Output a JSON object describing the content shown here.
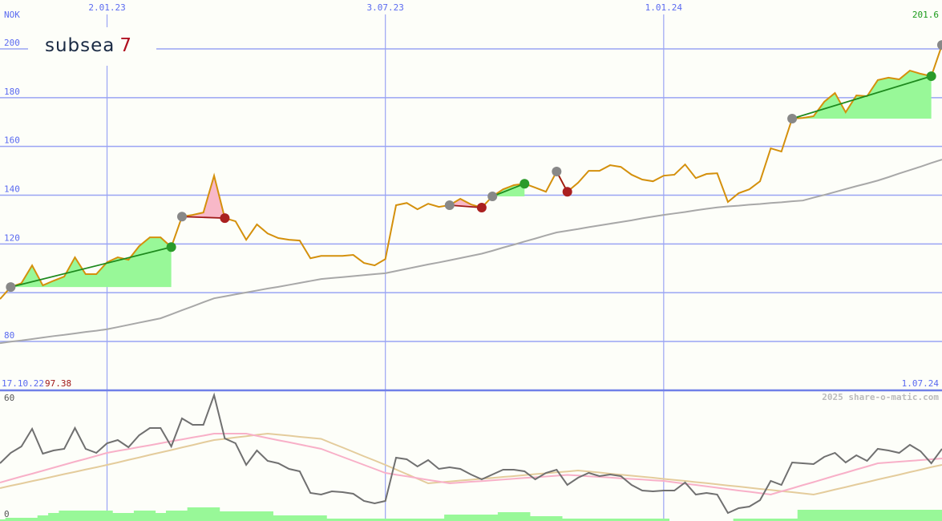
{
  "header": {
    "currency": "NOK",
    "last_value": "201.6",
    "start_date": "17.10.22",
    "start_value": "97.38",
    "end_date": "1.07.24",
    "copyright": "2025 share-o-matic.com"
  },
  "logo": {
    "text": "subsea",
    "number": "7",
    "text_color": "#1a2a44",
    "number_color": "#b01020"
  },
  "chart_data": [
    {
      "type": "line",
      "title": "",
      "xlabel": "",
      "ylabel": "NOK",
      "ylim": [
        80,
        200
      ],
      "yticks": [
        80,
        100,
        120,
        140,
        160,
        180,
        200
      ],
      "ytick_labels": [
        "80",
        "",
        "120",
        "140",
        "160",
        "180",
        "200"
      ],
      "xtick_labels": [
        "2.01.23",
        "3.07.23",
        "1.01.24"
      ],
      "grid": true,
      "price": [
        97.4,
        102.3,
        103.9,
        111.2,
        103,
        104.9,
        106.6,
        114.5,
        107.6,
        107.6,
        112.5,
        114.5,
        113.5,
        119.1,
        122.7,
        122.7,
        118.7,
        131.2,
        131.9,
        132.9,
        148,
        130.6,
        129.3,
        121.7,
        128,
        124.3,
        122.4,
        121.7,
        121.4,
        114.1,
        115.1,
        115.1,
        115.1,
        115.5,
        112.2,
        111.2,
        113.8,
        135.9,
        136.8,
        134.2,
        136.5,
        135.2,
        135.9,
        138.5,
        136.2,
        134.9,
        139.5,
        142.4,
        144.1,
        144.7,
        143.1,
        141.4,
        149.7,
        141.4,
        145.1,
        150,
        150,
        152.3,
        151.6,
        148.4,
        146.4,
        145.7,
        148,
        148.4,
        152.6,
        147,
        148.7,
        149,
        137.2,
        140.8,
        142.4,
        145.7,
        159.2,
        157.9,
        171.4,
        171.7,
        172.4,
        178.3,
        181.9,
        174,
        180.9,
        180.6,
        187.2,
        188.2,
        187.5,
        191.1,
        189.8,
        188.8,
        201.6
      ],
      "moving_average": [
        79.3,
        79.9,
        80.4,
        81.0,
        81.6,
        82.2,
        82.7,
        83.3,
        83.9,
        84.4,
        85.0,
        85.9,
        86.8,
        87.7,
        88.6,
        89.5,
        91.1,
        92.8,
        94.4,
        96.1,
        97.7,
        98.5,
        99.3,
        100.1,
        100.9,
        101.7,
        102.4,
        103.2,
        104.0,
        104.8,
        105.6,
        106.0,
        106.4,
        106.8,
        107.2,
        107.6,
        108.0,
        108.9,
        109.8,
        110.7,
        111.6,
        112.4,
        113.3,
        114.2,
        115.1,
        116.0,
        117.2,
        118.5,
        119.7,
        121.0,
        122.2,
        123.5,
        124.7,
        125.4,
        126.1,
        126.9,
        127.6,
        128.3,
        129.0,
        129.7,
        130.5,
        131.2,
        131.9,
        132.5,
        133.1,
        133.8,
        134.4,
        135.0,
        135.4,
        135.7,
        136.1,
        136.4,
        136.8,
        137.1,
        137.5,
        137.8,
        139.0,
        140.1,
        141.3,
        142.5,
        143.7,
        144.8,
        146.0,
        147.4,
        148.9,
        150.3,
        151.7,
        153.2,
        154.6
      ],
      "signals": [
        {
          "from": 1,
          "to": 16,
          "type": "up"
        },
        {
          "from": 17,
          "to": 21,
          "type": "down"
        },
        {
          "from": 42,
          "to": 45,
          "type": "down"
        },
        {
          "from": 46,
          "to": 49,
          "type": "up"
        },
        {
          "from": 52,
          "to": 53,
          "type": "down"
        },
        {
          "from": 74,
          "to": 87,
          "type": "up"
        }
      ],
      "colors": {
        "price": "#d4900c",
        "moving_average": "#a8a8a8",
        "up_line": "#1e8a1e",
        "up_fill": "#98f898",
        "down_line": "#a01818",
        "down_fill": "#f8b8c8",
        "marker_start": "#888888",
        "marker_up": "#2a9a2a",
        "marker_down": "#aa2020",
        "grid": "#9aa4f4"
      }
    },
    {
      "type": "line",
      "title": "",
      "ylim": [
        0,
        60
      ],
      "ytick_labels": [
        "0",
        "60"
      ],
      "oscillator": [
        26.8,
        32,
        35.2,
        44,
        31.6,
        33.2,
        34,
        44.4,
        34,
        32,
        36.8,
        38.4,
        34.8,
        40.8,
        44.4,
        44.4,
        35.2,
        49.2,
        46,
        46,
        60.8,
        39.2,
        36.8,
        26,
        33.2,
        28,
        26.8,
        24,
        22.8,
        12,
        11.2,
        12.8,
        12.4,
        11.6,
        8,
        6.8,
        8,
        29.6,
        28.8,
        25.2,
        28.4,
        24,
        24.8,
        24,
        21.2,
        18.8,
        21.2,
        23.6,
        23.6,
        22.8,
        18.8,
        22,
        23.6,
        16,
        19.6,
        22,
        20.4,
        21.2,
        20.4,
        16,
        13.2,
        12.8,
        13.2,
        13.2,
        17.2,
        11.2,
        12,
        11.2,
        2,
        4.4,
        5.2,
        8.4,
        18,
        16,
        27.2,
        26.8,
        26.4,
        30,
        32,
        27.2,
        30.8,
        28,
        34,
        33.2,
        32,
        36,
        32.8,
        26.8,
        34
      ],
      "signal_fast": [
        17.2,
        18.7,
        20.2,
        21.6,
        23.1,
        24.6,
        26.1,
        27.6,
        29.0,
        30.5,
        32,
        33,
        33.9,
        34.9,
        35.8,
        36.8,
        37.8,
        38.7,
        39.7,
        40.6,
        41.6,
        41.6,
        41.6,
        41.6,
        40.5,
        39.4,
        38.3,
        37.3,
        36.2,
        35.1,
        34,
        32,
        30,
        28,
        26,
        24,
        22,
        21.1,
        20.3,
        19.4,
        18.5,
        17.7,
        16.8,
        17.2,
        17.6,
        17.9,
        18.3,
        18.7,
        19.1,
        19.5,
        19.8,
        20.2,
        20.6,
        21,
        20.7,
        20.3,
        20,
        19.7,
        19.3,
        19,
        18.7,
        18.3,
        18,
        17.3,
        16.6,
        16,
        15.3,
        14.6,
        13.9,
        13.2,
        12.6,
        11.9,
        11.2,
        12.8,
        14.3,
        15.9,
        17.4,
        19,
        20.6,
        22.1,
        23.7,
        25.2,
        26.8,
        27.2,
        27.6,
        28,
        28.4,
        28.8,
        29.2
      ],
      "signal_slow": [
        14.4,
        15.6,
        16.7,
        17.9,
        19,
        20.2,
        21.4,
        22.5,
        23.7,
        24.8,
        26,
        27.2,
        28.5,
        29.7,
        31,
        32.2,
        33.4,
        34.7,
        35.9,
        37.2,
        38.4,
        39,
        39.7,
        40.3,
        41,
        41.6,
        41.1,
        40.6,
        40,
        39.5,
        39,
        36.8,
        34.7,
        32.5,
        30.3,
        28.2,
        26,
        23.7,
        21.4,
        19.1,
        16.8,
        17.3,
        17.7,
        18.2,
        18.6,
        19.1,
        19.5,
        20,
        20.4,
        20.9,
        21.4,
        21.8,
        22.3,
        22.7,
        23.2,
        22.7,
        22.2,
        21.6,
        21.1,
        20.6,
        20.1,
        19.6,
        19,
        18.5,
        18,
        17.4,
        16.9,
        16.3,
        15.7,
        15.2,
        14.6,
        14.0,
        13.5,
        12.9,
        12.4,
        11.8,
        11.2,
        12.4,
        13.7,
        14.9,
        16.2,
        17.4,
        18.7,
        19.9,
        21.1,
        22.4,
        23.6,
        24.9,
        26
      ],
      "volume_level": [
        2,
        4,
        4,
        4,
        7,
        10,
        13,
        13,
        13,
        13,
        13,
        10,
        10,
        13,
        13,
        10,
        13,
        13,
        17,
        17,
        17,
        12,
        12,
        12,
        12,
        12,
        7,
        7,
        7,
        7,
        7,
        3,
        3,
        3,
        3,
        3,
        3,
        3,
        3,
        3,
        3,
        3,
        8,
        8,
        8,
        8,
        8,
        11,
        11,
        11,
        6,
        6,
        6,
        3,
        3,
        3,
        3,
        3,
        3,
        3,
        3,
        3,
        3,
        0,
        0,
        0,
        0,
        0,
        0,
        3,
        3,
        3,
        3,
        3,
        3,
        14,
        14,
        14,
        14,
        14,
        14,
        14,
        14,
        14,
        14,
        14,
        14,
        14,
        14
      ],
      "colors": {
        "oscillator": "#707070",
        "signal_fast": "#f8b0c8",
        "signal_slow": "#e4cc9c",
        "volume": "#98f898"
      }
    }
  ]
}
